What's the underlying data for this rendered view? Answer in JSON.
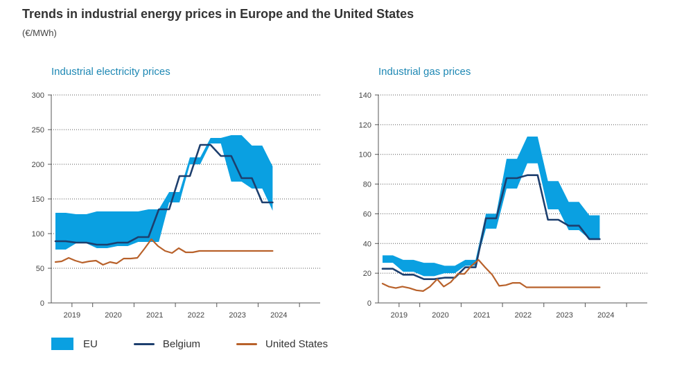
{
  "title": "Trends in industrial energy prices in Europe and the United States",
  "units": "(€/MWh)",
  "colors": {
    "eu": "#0aa0e1",
    "belgium": "#1d3f6e",
    "us": "#b8612a",
    "axis": "#555555",
    "grid": "#555555",
    "title": "#1e88b4"
  },
  "legend": [
    {
      "label": "EU",
      "kind": "area",
      "key": "eu"
    },
    {
      "label": "Belgium",
      "kind": "line",
      "key": "belgium"
    },
    {
      "label": "United States",
      "kind": "line",
      "key": "us"
    }
  ],
  "chart_data": [
    {
      "type": "area",
      "title": "Industrial electricity prices",
      "xlabel": "",
      "ylabel": "€/MWh",
      "xlim": [
        2018.5,
        2025.0
      ],
      "ylim": [
        0,
        300
      ],
      "yticks": [
        0,
        50,
        100,
        150,
        200,
        250,
        300
      ],
      "xtick_labels": [
        "2019",
        "2020",
        "2021",
        "2022",
        "2023",
        "2024"
      ],
      "xtick_positions": [
        2019.0,
        2020.0,
        2021.0,
        2022.0,
        2023.0,
        2024.0
      ],
      "grid": "horizontal dotted",
      "series": [
        {
          "name": "EU",
          "kind": "band",
          "x": [
            2018.6,
            2018.85,
            2019.1,
            2019.35,
            2019.6,
            2019.85,
            2020.1,
            2020.35,
            2020.6,
            2020.85,
            2021.1,
            2021.35,
            2021.6,
            2021.85,
            2022.1,
            2022.35,
            2022.6,
            2022.85,
            2023.1,
            2023.35,
            2023.6,
            2023.85
          ],
          "upper": [
            130,
            130,
            128,
            128,
            132,
            132,
            132,
            132,
            132,
            135,
            135,
            160,
            160,
            210,
            210,
            238,
            238,
            242,
            242,
            227,
            227,
            197
          ],
          "lower": [
            77,
            77,
            86,
            86,
            79,
            79,
            82,
            82,
            88,
            88,
            88,
            145,
            145,
            200,
            200,
            230,
            230,
            175,
            175,
            165,
            165,
            133
          ]
        },
        {
          "name": "Belgium",
          "kind": "line",
          "x": [
            2018.6,
            2018.85,
            2019.1,
            2019.35,
            2019.6,
            2019.85,
            2020.1,
            2020.35,
            2020.6,
            2020.85,
            2021.1,
            2021.35,
            2021.6,
            2021.85,
            2022.1,
            2022.35,
            2022.6,
            2022.85,
            2023.1,
            2023.35,
            2023.6,
            2023.85
          ],
          "values": [
            89,
            89,
            87,
            87,
            84,
            84,
            87,
            87,
            95,
            95,
            135,
            135,
            183,
            183,
            228,
            228,
            212,
            212,
            180,
            180,
            145,
            145
          ]
        },
        {
          "name": "United States",
          "kind": "line",
          "x": [
            2018.6,
            2018.75,
            2018.92,
            2019.08,
            2019.25,
            2019.42,
            2019.58,
            2019.75,
            2019.92,
            2020.08,
            2020.25,
            2020.42,
            2020.58,
            2020.75,
            2020.92,
            2021.08,
            2021.25,
            2021.42,
            2021.58,
            2021.75,
            2021.92,
            2022.08,
            2022.25,
            2022.42,
            2022.58,
            2022.75,
            2022.92,
            2023.08,
            2023.25,
            2023.42,
            2023.58,
            2023.75,
            2023.85
          ],
          "values": [
            59,
            60,
            65,
            61,
            58,
            60,
            61,
            55,
            59,
            57,
            64,
            64,
            65,
            78,
            92,
            82,
            75,
            72,
            79,
            73,
            73,
            75,
            75,
            75,
            75,
            75,
            75,
            75,
            75,
            75,
            75,
            75,
            75
          ]
        }
      ]
    },
    {
      "type": "area",
      "title": "Industrial gas prices",
      "xlabel": "",
      "ylabel": "€/MWh",
      "xlim": [
        2018.5,
        2025.0
      ],
      "ylim": [
        0,
        140
      ],
      "yticks": [
        0,
        20,
        40,
        60,
        80,
        100,
        120,
        140
      ],
      "xtick_labels": [
        "2019",
        "2020",
        "2021",
        "2022",
        "2023",
        "2024"
      ],
      "xtick_positions": [
        2019.0,
        2020.0,
        2021.0,
        2022.0,
        2023.0,
        2024.0
      ],
      "grid": "horizontal dotted",
      "series": [
        {
          "name": "EU",
          "kind": "band",
          "x": [
            2018.6,
            2018.85,
            2019.1,
            2019.35,
            2019.6,
            2019.85,
            2020.1,
            2020.35,
            2020.6,
            2020.85,
            2021.1,
            2021.35,
            2021.6,
            2021.85,
            2022.1,
            2022.35,
            2022.6,
            2022.85,
            2023.1,
            2023.35,
            2023.6,
            2023.85
          ],
          "upper": [
            32,
            32,
            29,
            29,
            27,
            27,
            25,
            25,
            29,
            29,
            60,
            60,
            97,
            97,
            112,
            112,
            82,
            82,
            68,
            68,
            59,
            59
          ],
          "lower": [
            27,
            27,
            21,
            21,
            18,
            18,
            20,
            20,
            25,
            25,
            50,
            50,
            77,
            77,
            94,
            94,
            63,
            63,
            49,
            49,
            43,
            43
          ]
        },
        {
          "name": "Belgium",
          "kind": "line",
          "x": [
            2018.6,
            2018.85,
            2019.1,
            2019.35,
            2019.6,
            2019.85,
            2020.1,
            2020.35,
            2020.6,
            2020.85,
            2021.1,
            2021.35,
            2021.6,
            2021.85,
            2022.1,
            2022.35,
            2022.6,
            2022.85,
            2023.1,
            2023.35,
            2023.6,
            2023.85
          ],
          "values": [
            23,
            23,
            19,
            19,
            16,
            16,
            17,
            17,
            24,
            24,
            57,
            57,
            84,
            84,
            86,
            86,
            56,
            56,
            52,
            52,
            43,
            43
          ]
        },
        {
          "name": "United States",
          "kind": "line",
          "x": [
            2018.6,
            2018.75,
            2018.92,
            2019.08,
            2019.25,
            2019.42,
            2019.58,
            2019.75,
            2019.92,
            2020.08,
            2020.25,
            2020.42,
            2020.58,
            2020.75,
            2020.92,
            2021.08,
            2021.25,
            2021.42,
            2021.58,
            2021.75,
            2021.92,
            2022.08,
            2022.25,
            2022.42,
            2022.58,
            2022.75,
            2022.92,
            2023.08,
            2023.25,
            2023.42,
            2023.58,
            2023.75,
            2023.85
          ],
          "values": [
            13,
            11,
            10,
            11,
            10,
            8.5,
            8,
            11,
            16,
            11,
            14,
            19.5,
            19.5,
            25,
            29,
            24,
            19,
            11.5,
            12,
            13.5,
            13.5,
            10.5,
            10.5,
            10.5,
            10.5,
            10.5,
            10.5,
            10.5,
            10.5,
            10.5,
            10.5,
            10.5,
            10.5
          ]
        }
      ]
    }
  ]
}
